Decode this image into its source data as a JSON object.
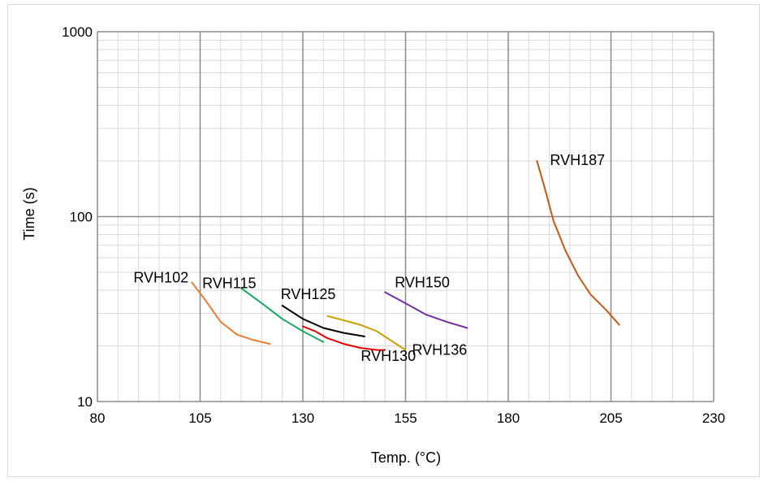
{
  "chart_data": {
    "type": "line",
    "title": "",
    "xlabel": "Temp. (°C)",
    "ylabel": "Time (s)",
    "xlim": [
      80,
      230
    ],
    "ylim": [
      10,
      1000
    ],
    "yscale": "log",
    "x_ticks": [
      "80",
      "105",
      "130",
      "155",
      "180",
      "205",
      "230"
    ],
    "y_ticks": [
      "10",
      "100",
      "1000"
    ],
    "grid": true,
    "legend": "none",
    "series": [
      {
        "name": "RVH102",
        "color": "#ED7D31",
        "x": [
          103,
          106,
          110,
          114,
          118,
          122
        ],
        "y": [
          44,
          36,
          27,
          23,
          21.5,
          20.5
        ]
      },
      {
        "name": "RVH115",
        "color": "#17A95F",
        "x": [
          115,
          120,
          125,
          130,
          135
        ],
        "y": [
          41,
          34,
          28,
          24,
          21
        ]
      },
      {
        "name": "RVH125",
        "color": "#000000",
        "x": [
          125,
          130,
          135,
          140,
          145
        ],
        "y": [
          33,
          28,
          25,
          23.5,
          22.5
        ]
      },
      {
        "name": "RVH130",
        "color": "#E00000",
        "x": [
          130,
          133,
          136,
          140,
          144,
          148,
          150
        ],
        "y": [
          25.5,
          24,
          22,
          20.5,
          19.5,
          19,
          19
        ]
      },
      {
        "name": "RVH136",
        "color": "#C9A000",
        "x": [
          136,
          140,
          144,
          148,
          152,
          155
        ],
        "y": [
          29,
          27.5,
          26,
          24,
          21,
          19
        ]
      },
      {
        "name": "RVH150",
        "color": "#7030A0",
        "x": [
          150,
          155,
          160,
          165,
          170
        ],
        "y": [
          39,
          34,
          29.5,
          27,
          25
        ]
      },
      {
        "name": "RVH187",
        "color": "#C55A11",
        "x": [
          187,
          189,
          191,
          194,
          197,
          200,
          204,
          207
        ],
        "y": [
          200,
          140,
          95,
          65,
          48,
          38,
          31,
          26
        ]
      }
    ]
  }
}
